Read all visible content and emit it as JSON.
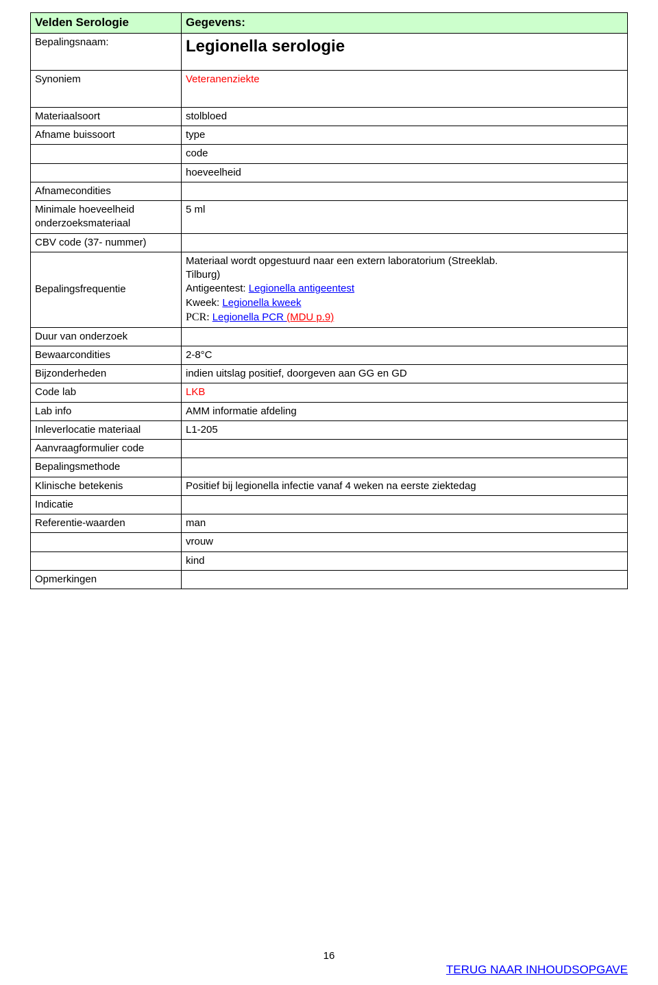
{
  "header": {
    "left": "Velden Serologie",
    "right": "Gegevens:"
  },
  "rows": {
    "bepalingsnaam_lbl": "Bepalingsnaam:",
    "bepalingsnaam_val": "Legionella serologie",
    "synoniem_lbl": "Synoniem",
    "synoniem_val": "Veteranenziekte",
    "materiaalsoort_lbl": "Materiaalsoort",
    "materiaalsoort_val": "stolbloed",
    "afname_buissoort_lbl": "Afname buissoort",
    "afname_buissoort_val": "type",
    "code_val": "code",
    "hoeveelheid_val": "hoeveelheid",
    "afnamecondities_lbl": "Afnamecondities",
    "min_hoev_lbl_1": "Minimale hoeveelheid",
    "min_hoev_lbl_2": "onderzoeksmateriaal",
    "min_hoev_val": "5 ml",
    "cbv_lbl": "CBV code (37- nummer)",
    "bepalingsfreq_lbl": "Bepalingsfrequentie",
    "bf_line1": "Materiaal wordt opgestuurd naar een extern laboratorium (Streeklab.",
    "bf_line2": "Tilburg)",
    "bf_line3_pre": "Antigeentest: ",
    "bf_line3_link": "Legionella antigeentest",
    "bf_line4_pre": "Kweek: ",
    "bf_line4_link": "Legionella kweek",
    "bf_line5_pre": "PCR: ",
    "bf_line5_link": "Legionella PCR ",
    "bf_line5_red": "(MDU p.9)",
    "duur_lbl": "Duur van onderzoek",
    "bewaar_lbl": "Bewaarcondities",
    "bewaar_val": "2-8°C",
    "bijz_lbl": "Bijzonderheden",
    "bijz_val": "indien uitslag positief, doorgeven aan GG en GD",
    "codelab_lbl": "Code lab",
    "codelab_val": "LKB",
    "labinfo_lbl": "Lab info",
    "labinfo_val": "AMM informatie afdeling",
    "inlever_lbl": "Inleverlocatie materiaal",
    "inlever_val": "L1-205",
    "aanvraag_lbl": "Aanvraagformulier code",
    "bepmeth_lbl": "Bepalingsmethode",
    "klin_lbl": "Klinische betekenis",
    "klin_val": "Positief bij legionella infectie vanaf 4 weken na eerste ziektedag",
    "indicatie_lbl": "Indicatie",
    "ref_lbl": "Referentie-waarden",
    "ref_man": "man",
    "ref_vrouw": "vrouw",
    "ref_kind": "kind",
    "opm_lbl": "Opmerkingen"
  },
  "footer": {
    "page": "16",
    "back": "TERUG NAAR INHOUDSOPGAVE"
  },
  "colors": {
    "header_bg": "#ccffcc",
    "red": "#ff0000",
    "link": "#0000ff"
  }
}
